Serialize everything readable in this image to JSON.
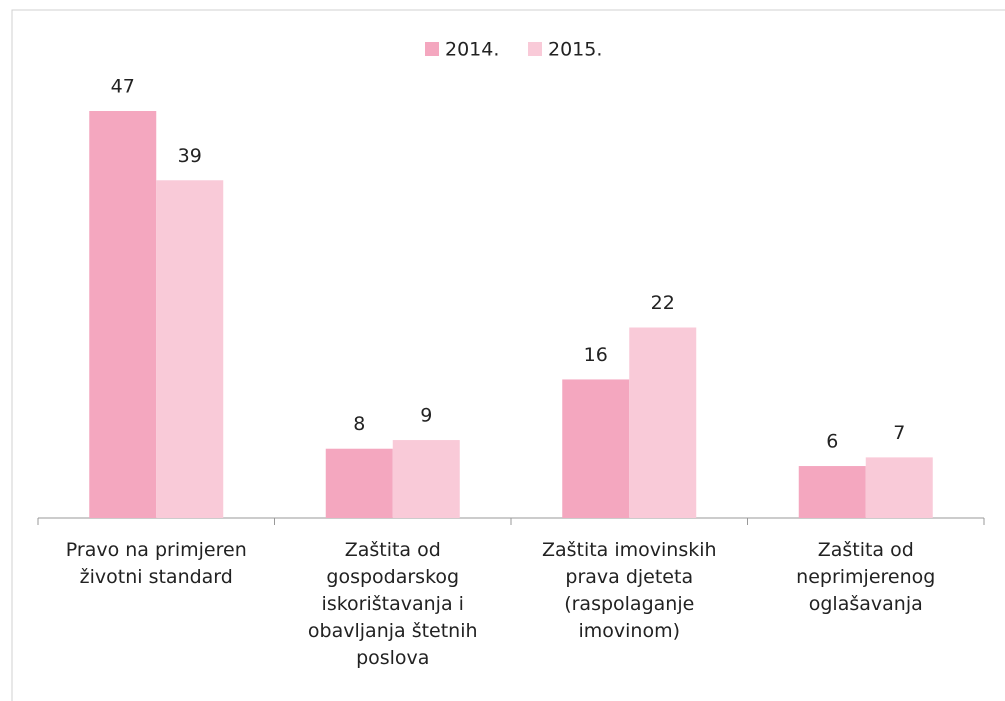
{
  "chart_data": {
    "type": "bar",
    "categories": [
      "Pravo na primjeren životni standard",
      "Zaštita od gospodarskog iskorištavanja i obavljanja štetnih poslova",
      "Zaštita imovinskih prava djeteta (raspolaganje imovinom)",
      "Zaštita od neprimjerenog oglašavanja"
    ],
    "series": [
      {
        "name": "2014.",
        "color": "#f4a7bf",
        "values": [
          47,
          8,
          16,
          6
        ]
      },
      {
        "name": "2015.",
        "color": "#f9cad8",
        "values": [
          39,
          9,
          22,
          7
        ]
      }
    ],
    "legend": "top"
  }
}
